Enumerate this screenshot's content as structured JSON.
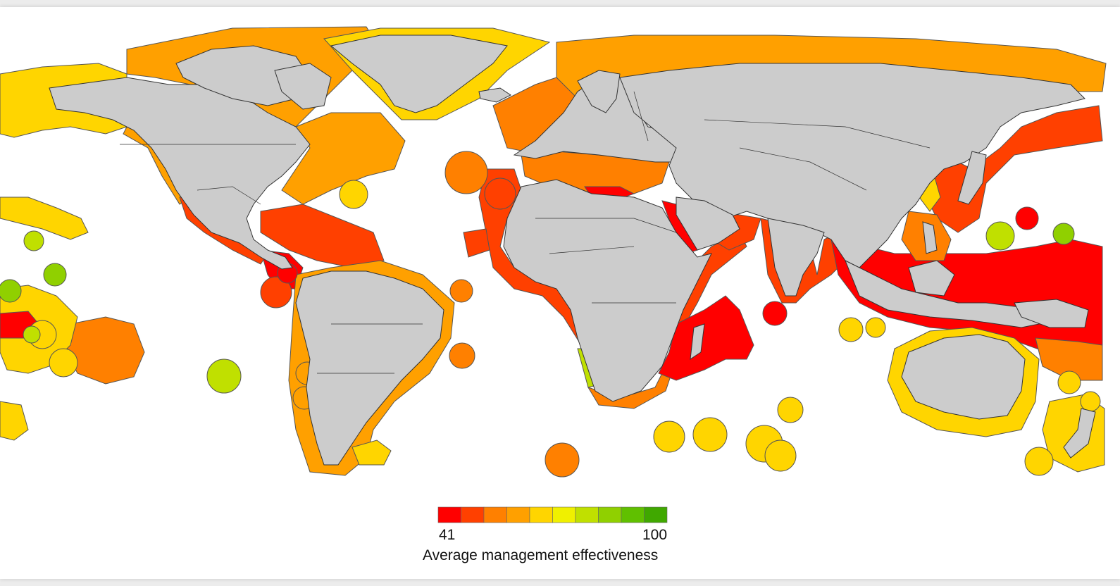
{
  "legend": {
    "title": "Average management effectiveness",
    "min_label": "41",
    "max_label": "100",
    "scale": [
      {
        "color": "#ff0000"
      },
      {
        "color": "#ff4000"
      },
      {
        "color": "#ff8000"
      },
      {
        "color": "#ffa000"
      },
      {
        "color": "#ffd500"
      },
      {
        "color": "#f0f000"
      },
      {
        "color": "#c0e000"
      },
      {
        "color": "#90d000"
      },
      {
        "color": "#60c000"
      },
      {
        "color": "#40a800"
      }
    ]
  },
  "colors": {
    "land": "#cccccc",
    "ocean": "#ffffff",
    "border": "#333333"
  },
  "regions": [
    {
      "name": "arctic-north-america",
      "color": "#ffa000"
    },
    {
      "name": "greenland-eez",
      "color": "#ffd500"
    },
    {
      "name": "alaska-eez",
      "color": "#ffd500"
    },
    {
      "name": "us-east-coast",
      "color": "#ffa000"
    },
    {
      "name": "west-mexico",
      "color": "#ff4000"
    },
    {
      "name": "central-america",
      "color": "#ff0000"
    },
    {
      "name": "caribbean",
      "color": "#ff4000"
    },
    {
      "name": "south-america-coast",
      "color": "#ffa000"
    },
    {
      "name": "hawaii-line-islands",
      "color": "#ffd500"
    },
    {
      "name": "central-pacific",
      "color": "#ff8000"
    },
    {
      "name": "south-pacific-islands",
      "color": "#ffd500"
    },
    {
      "name": "europe-north",
      "color": "#ff8000"
    },
    {
      "name": "baltic",
      "color": "#ff0000"
    },
    {
      "name": "mediterranean",
      "color": "#ff8000"
    },
    {
      "name": "west-africa",
      "color": "#ff4000"
    },
    {
      "name": "namibia",
      "color": "#c0e000"
    },
    {
      "name": "south-africa",
      "color": "#ff8000"
    },
    {
      "name": "east-africa",
      "color": "#ff4000"
    },
    {
      "name": "madagascar-region",
      "color": "#ff0000"
    },
    {
      "name": "red-sea",
      "color": "#ff0000"
    },
    {
      "name": "arabian-sea",
      "color": "#ff4000"
    },
    {
      "name": "india",
      "color": "#ff4000"
    },
    {
      "name": "russia-arctic",
      "color": "#ffa000"
    },
    {
      "name": "east-asia",
      "color": "#ff4000"
    },
    {
      "name": "southeast-asia",
      "color": "#ff0000"
    },
    {
      "name": "australia",
      "color": "#ffd500"
    },
    {
      "name": "new-zealand",
      "color": "#ffd500"
    },
    {
      "name": "south-atlantic-islands",
      "color": "#ff8000"
    },
    {
      "name": "southern-indian-ocean",
      "color": "#ffd500"
    }
  ]
}
